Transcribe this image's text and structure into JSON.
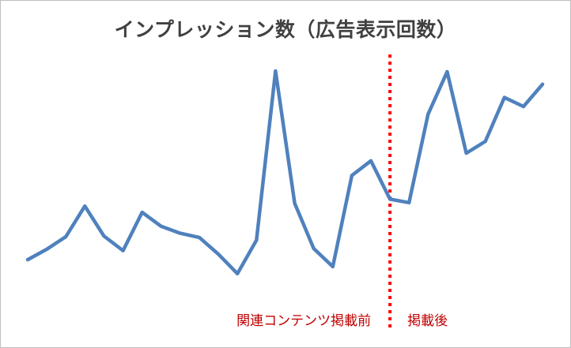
{
  "chart_data": {
    "type": "line",
    "title": "インプレッション数（広告表示回数）",
    "xlabel": "",
    "ylabel": "",
    "grid": false,
    "legend": "none",
    "x": [
      1,
      2,
      3,
      4,
      5,
      6,
      7,
      8,
      9,
      10,
      11,
      12,
      13,
      14,
      15,
      16,
      17,
      18,
      19,
      20,
      21,
      22,
      23,
      24,
      25,
      26,
      27,
      28
    ],
    "ylim": [
      0,
      340
    ],
    "series": [
      {
        "color": "#4f81bd",
        "values": [
          35,
          50,
          68,
          112,
          69,
          48,
          103,
          83,
          73,
          67,
          43,
          15,
          63,
          306,
          116,
          51,
          25,
          156,
          177,
          122,
          117,
          244,
          305,
          188,
          205,
          268,
          255,
          287
        ]
      }
    ],
    "divider": {
      "after_index": 19,
      "color": "#ff0000",
      "style": "dotted"
    },
    "annotations": {
      "before": "関連コンテンツ掲載前",
      "after": "掲載後"
    }
  }
}
